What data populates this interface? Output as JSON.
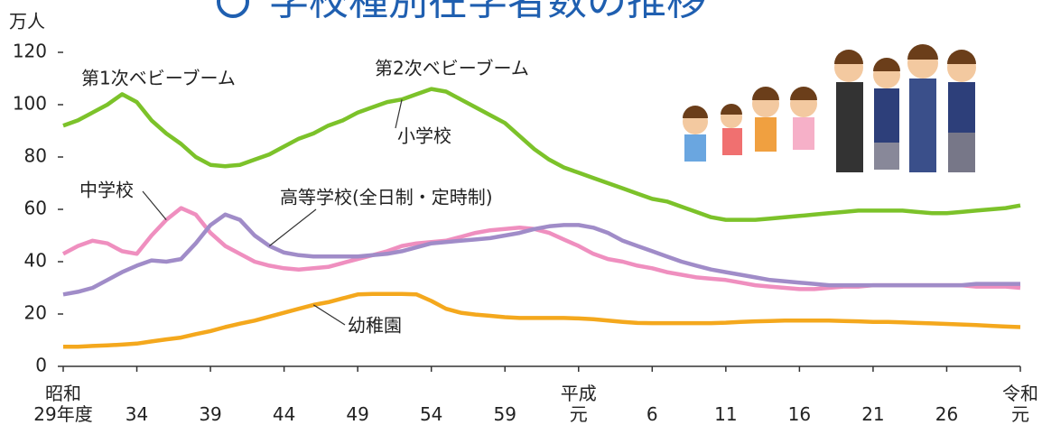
{
  "chart_data": {
    "type": "line",
    "title": "学校種別在学者数の推移",
    "y_label": "万人",
    "categories": [
      "昭和\n29年度",
      null,
      null,
      null,
      null,
      "34",
      null,
      null,
      null,
      null,
      "39",
      null,
      null,
      null,
      null,
      "44",
      null,
      null,
      null,
      null,
      "49",
      null,
      null,
      null,
      null,
      "54",
      null,
      null,
      null,
      null,
      "59",
      null,
      null,
      null,
      null,
      "平成\n元",
      null,
      null,
      null,
      null,
      "6",
      null,
      null,
      null,
      null,
      "11",
      null,
      null,
      null,
      null,
      "16",
      null,
      null,
      null,
      null,
      "21",
      null,
      null,
      null,
      null,
      "26",
      null,
      null,
      null,
      null,
      "令和\n元"
    ],
    "ylim": [
      0,
      120
    ],
    "yticks": [
      0,
      20,
      40,
      60,
      80,
      100,
      120
    ],
    "grid": false,
    "annotations": [
      "第1次ベビーブーム",
      "第2次ベビーブーム"
    ],
    "series": [
      {
        "name": "小学校",
        "color": "#7cc22a",
        "values": [
          92,
          94,
          97,
          100,
          104,
          101,
          94,
          89,
          85,
          80,
          77,
          76.5,
          77,
          79,
          81,
          84,
          87,
          89,
          92,
          94,
          97,
          99,
          101,
          102,
          104,
          106,
          105,
          102,
          99,
          96,
          93,
          88,
          83,
          79,
          76,
          74,
          72,
          70,
          68,
          66,
          64,
          63,
          61,
          59,
          57,
          56,
          56,
          56,
          56.5,
          57,
          57.5,
          58,
          58.5,
          59,
          59.5,
          59.5,
          59.5,
          59.5,
          59,
          58.5,
          58.5,
          59,
          59.5,
          60,
          60.5,
          61.5
        ]
      },
      {
        "name": "中学校",
        "color": "#ef8fbf",
        "values": [
          43,
          46,
          48,
          47,
          44,
          43,
          50,
          56,
          60.5,
          58,
          51,
          46,
          43,
          40,
          38.5,
          37.5,
          37,
          37.5,
          38,
          39.5,
          41,
          42.5,
          44,
          46,
          47,
          47.5,
          48,
          49.5,
          51,
          52,
          52.5,
          53,
          52.5,
          51,
          48.5,
          46,
          43,
          41,
          40,
          38.5,
          37.5,
          36,
          35,
          34,
          33.5,
          33,
          32,
          31,
          30.5,
          30,
          29.5,
          29.5,
          30,
          30.5,
          30.5,
          31,
          31,
          31,
          31,
          31,
          31,
          31,
          30.5,
          30.5,
          30.5,
          30
        ]
      },
      {
        "name": "高等学校(全日制・定時制)",
        "color": "#a08cc8",
        "values": [
          27.5,
          28.5,
          30,
          33,
          36,
          38.5,
          40.5,
          40,
          41,
          47,
          54,
          58,
          56,
          50,
          46,
          43.5,
          42.5,
          42,
          42,
          42,
          42,
          42.5,
          43,
          44,
          45.5,
          47,
          47.5,
          48,
          48.5,
          49,
          50,
          51,
          52.5,
          53.5,
          54,
          54,
          53,
          51,
          48,
          46,
          44,
          42,
          40,
          38.5,
          37,
          36,
          35,
          34,
          33,
          32.5,
          32,
          31.5,
          31,
          31,
          31,
          31,
          31,
          31,
          31,
          31,
          31,
          31,
          31.5,
          31.5,
          31.5,
          31.5
        ]
      },
      {
        "name": "幼稚園",
        "color": "#f4a81d",
        "values": [
          7.5,
          7.5,
          7.8,
          8,
          8.3,
          8.7,
          9.5,
          10.3,
          11,
          12.3,
          13.5,
          15,
          16.3,
          17.5,
          19,
          20.5,
          22,
          23.5,
          24.5,
          26,
          27.5,
          27.7,
          27.7,
          27.7,
          27.5,
          25,
          22,
          20.5,
          19.8,
          19.3,
          18.8,
          18.5,
          18.5,
          18.5,
          18.5,
          18.3,
          18,
          17.5,
          17,
          16.6,
          16.5,
          16.5,
          16.5,
          16.5,
          16.5,
          16.7,
          17,
          17.2,
          17.3,
          17.5,
          17.5,
          17.5,
          17.5,
          17.3,
          17.2,
          17,
          17,
          16.8,
          16.6,
          16.4,
          16.2,
          16,
          15.8,
          15.5,
          15.2,
          15
        ]
      }
    ]
  }
}
